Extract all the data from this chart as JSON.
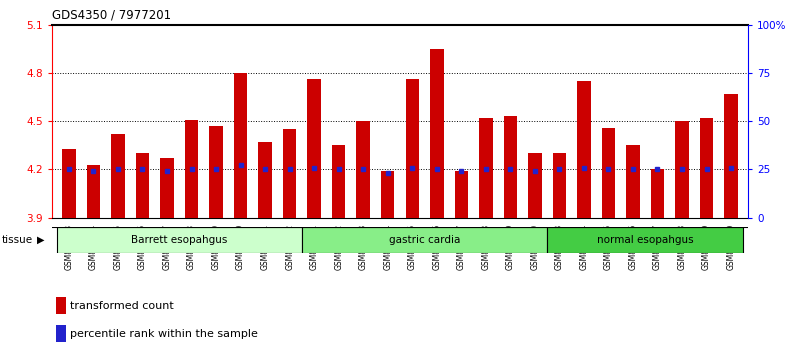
{
  "title": "GDS4350 / 7977201",
  "samples": [
    "GSM851983",
    "GSM851984",
    "GSM851985",
    "GSM851986",
    "GSM851987",
    "GSM851988",
    "GSM851989",
    "GSM851990",
    "GSM851991",
    "GSM851992",
    "GSM852001",
    "GSM852002",
    "GSM852003",
    "GSM852004",
    "GSM852005",
    "GSM852006",
    "GSM852007",
    "GSM852008",
    "GSM852009",
    "GSM852010",
    "GSM851993",
    "GSM851994",
    "GSM851995",
    "GSM851996",
    "GSM851997",
    "GSM851998",
    "GSM851999",
    "GSM852000"
  ],
  "transformed_count": [
    4.33,
    4.23,
    4.42,
    4.3,
    4.27,
    4.51,
    4.47,
    4.8,
    4.37,
    4.45,
    4.76,
    4.35,
    4.5,
    4.19,
    4.76,
    4.95,
    4.19,
    4.52,
    4.53,
    4.3,
    4.3,
    4.75,
    4.46,
    4.35,
    4.2,
    4.5,
    4.52,
    4.67
  ],
  "percentile_rank": [
    4.2,
    4.19,
    4.2,
    4.2,
    4.19,
    4.2,
    4.2,
    4.23,
    4.2,
    4.2,
    4.21,
    4.2,
    4.2,
    4.18,
    4.21,
    4.2,
    4.19,
    4.2,
    4.2,
    4.19,
    4.2,
    4.21,
    4.2,
    4.2,
    4.2,
    4.2,
    4.2,
    4.21
  ],
  "groups": [
    {
      "label": "Barrett esopahgus",
      "start": 0,
      "end": 10,
      "color": "#ccffcc"
    },
    {
      "label": "gastric cardia",
      "start": 10,
      "end": 20,
      "color": "#88ee88"
    },
    {
      "label": "normal esopahgus",
      "start": 20,
      "end": 28,
      "color": "#44cc44"
    }
  ],
  "ymin": 3.9,
  "ymax": 5.1,
  "yticks": [
    3.9,
    4.2,
    4.5,
    4.8,
    5.1
  ],
  "right_ytick_labels": [
    "0",
    "25",
    "50",
    "75",
    "100%"
  ],
  "bar_color": "#cc0000",
  "dot_color": "#2222cc",
  "background_color": "#ffffff"
}
